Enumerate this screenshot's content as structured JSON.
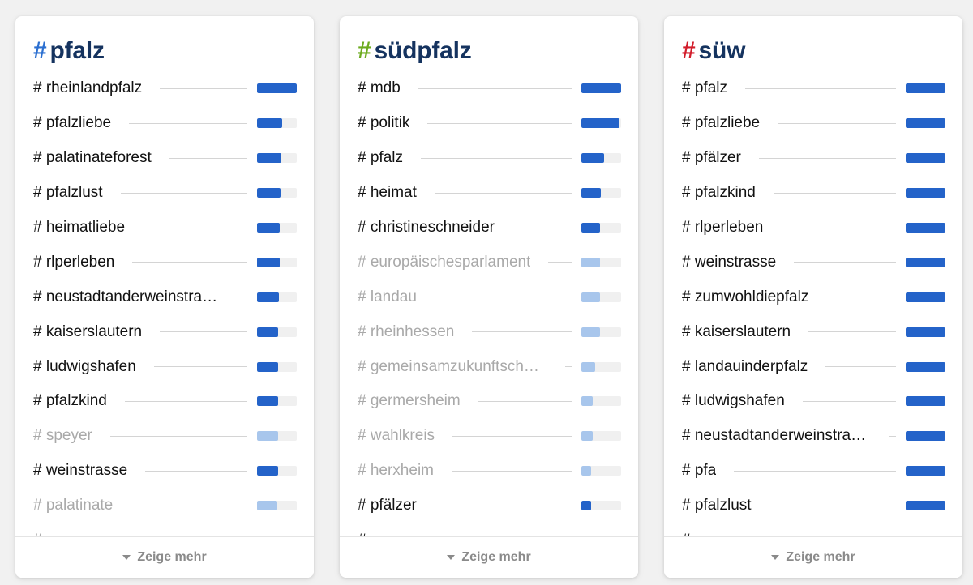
{
  "more_label": "Zeige mehr",
  "colors": {
    "bar": "#2463c9",
    "bar_muted": "#a8c6ec",
    "title": "#15335f"
  },
  "cards": [
    {
      "hash": "#",
      "hash_color": "#2b6fd0",
      "title": "pfalz",
      "items": [
        {
          "label": "# rheinlandpfalz",
          "value": 1.0,
          "muted": false
        },
        {
          "label": "# pfalzliebe",
          "value": 0.64,
          "muted": false
        },
        {
          "label": "# palatinateforest",
          "value": 0.61,
          "muted": false
        },
        {
          "label": "# pfalzlust",
          "value": 0.6,
          "muted": false
        },
        {
          "label": "# heimatliebe",
          "value": 0.57,
          "muted": false
        },
        {
          "label": "# rlperleben",
          "value": 0.57,
          "muted": false
        },
        {
          "label": "# neustadtanderweinstrasse…",
          "value": 0.56,
          "muted": false
        },
        {
          "label": "# kaiserslautern",
          "value": 0.54,
          "muted": false
        },
        {
          "label": "# ludwigshafen",
          "value": 0.54,
          "muted": false
        },
        {
          "label": "# pfalzkind",
          "value": 0.54,
          "muted": false
        },
        {
          "label": "# speyer",
          "value": 0.53,
          "muted": true
        },
        {
          "label": "# weinstrasse",
          "value": 0.53,
          "muted": false
        },
        {
          "label": "# palatinate",
          "value": 0.51,
          "muted": true
        },
        {
          "label": "# …",
          "value": 0.5,
          "muted": true
        }
      ]
    },
    {
      "hash": "#",
      "hash_color": "#6cab1f",
      "title": "südpfalz",
      "items": [
        {
          "label": "# mdb",
          "value": 1.0,
          "muted": false
        },
        {
          "label": "# politik",
          "value": 0.95,
          "muted": false
        },
        {
          "label": "# pfalz",
          "value": 0.58,
          "muted": false
        },
        {
          "label": "# heimat",
          "value": 0.48,
          "muted": false
        },
        {
          "label": "# christineschneider",
          "value": 0.46,
          "muted": false
        },
        {
          "label": "# europäischesparlament",
          "value": 0.46,
          "muted": true
        },
        {
          "label": "# landau",
          "value": 0.46,
          "muted": true
        },
        {
          "label": "# rheinhessen",
          "value": 0.46,
          "muted": true
        },
        {
          "label": "# gemeinsamzukunftschaffe…",
          "value": 0.34,
          "muted": true
        },
        {
          "label": "# germersheim",
          "value": 0.29,
          "muted": true
        },
        {
          "label": "# wahlkreis",
          "value": 0.29,
          "muted": true
        },
        {
          "label": "# herxheim",
          "value": 0.25,
          "muted": true
        },
        {
          "label": "# pfälzer",
          "value": 0.25,
          "muted": false
        },
        {
          "label": "# …",
          "value": 0.25,
          "muted": false
        }
      ]
    },
    {
      "hash": "#",
      "hash_color": "#d21d2b",
      "title": "süw",
      "items": [
        {
          "label": "# pfalz",
          "value": 1.0,
          "muted": false
        },
        {
          "label": "# pfalzliebe",
          "value": 1.0,
          "muted": false
        },
        {
          "label": "# pfälzer",
          "value": 1.0,
          "muted": false
        },
        {
          "label": "# pfalzkind",
          "value": 1.0,
          "muted": false
        },
        {
          "label": "# rlperleben",
          "value": 1.0,
          "muted": false
        },
        {
          "label": "# weinstrasse",
          "value": 1.0,
          "muted": false
        },
        {
          "label": "# zumwohldiepfalz",
          "value": 1.0,
          "muted": false
        },
        {
          "label": "# kaiserslautern",
          "value": 1.0,
          "muted": false
        },
        {
          "label": "# landauinderpfalz",
          "value": 1.0,
          "muted": false
        },
        {
          "label": "# ludwigshafen",
          "value": 1.0,
          "muted": false
        },
        {
          "label": "# neustadtanderweinstrasse…",
          "value": 1.0,
          "muted": false
        },
        {
          "label": "# pfa",
          "value": 1.0,
          "muted": false
        },
        {
          "label": "# pfalzlust",
          "value": 1.0,
          "muted": false
        },
        {
          "label": "# …",
          "value": 1.0,
          "muted": false
        }
      ]
    }
  ]
}
